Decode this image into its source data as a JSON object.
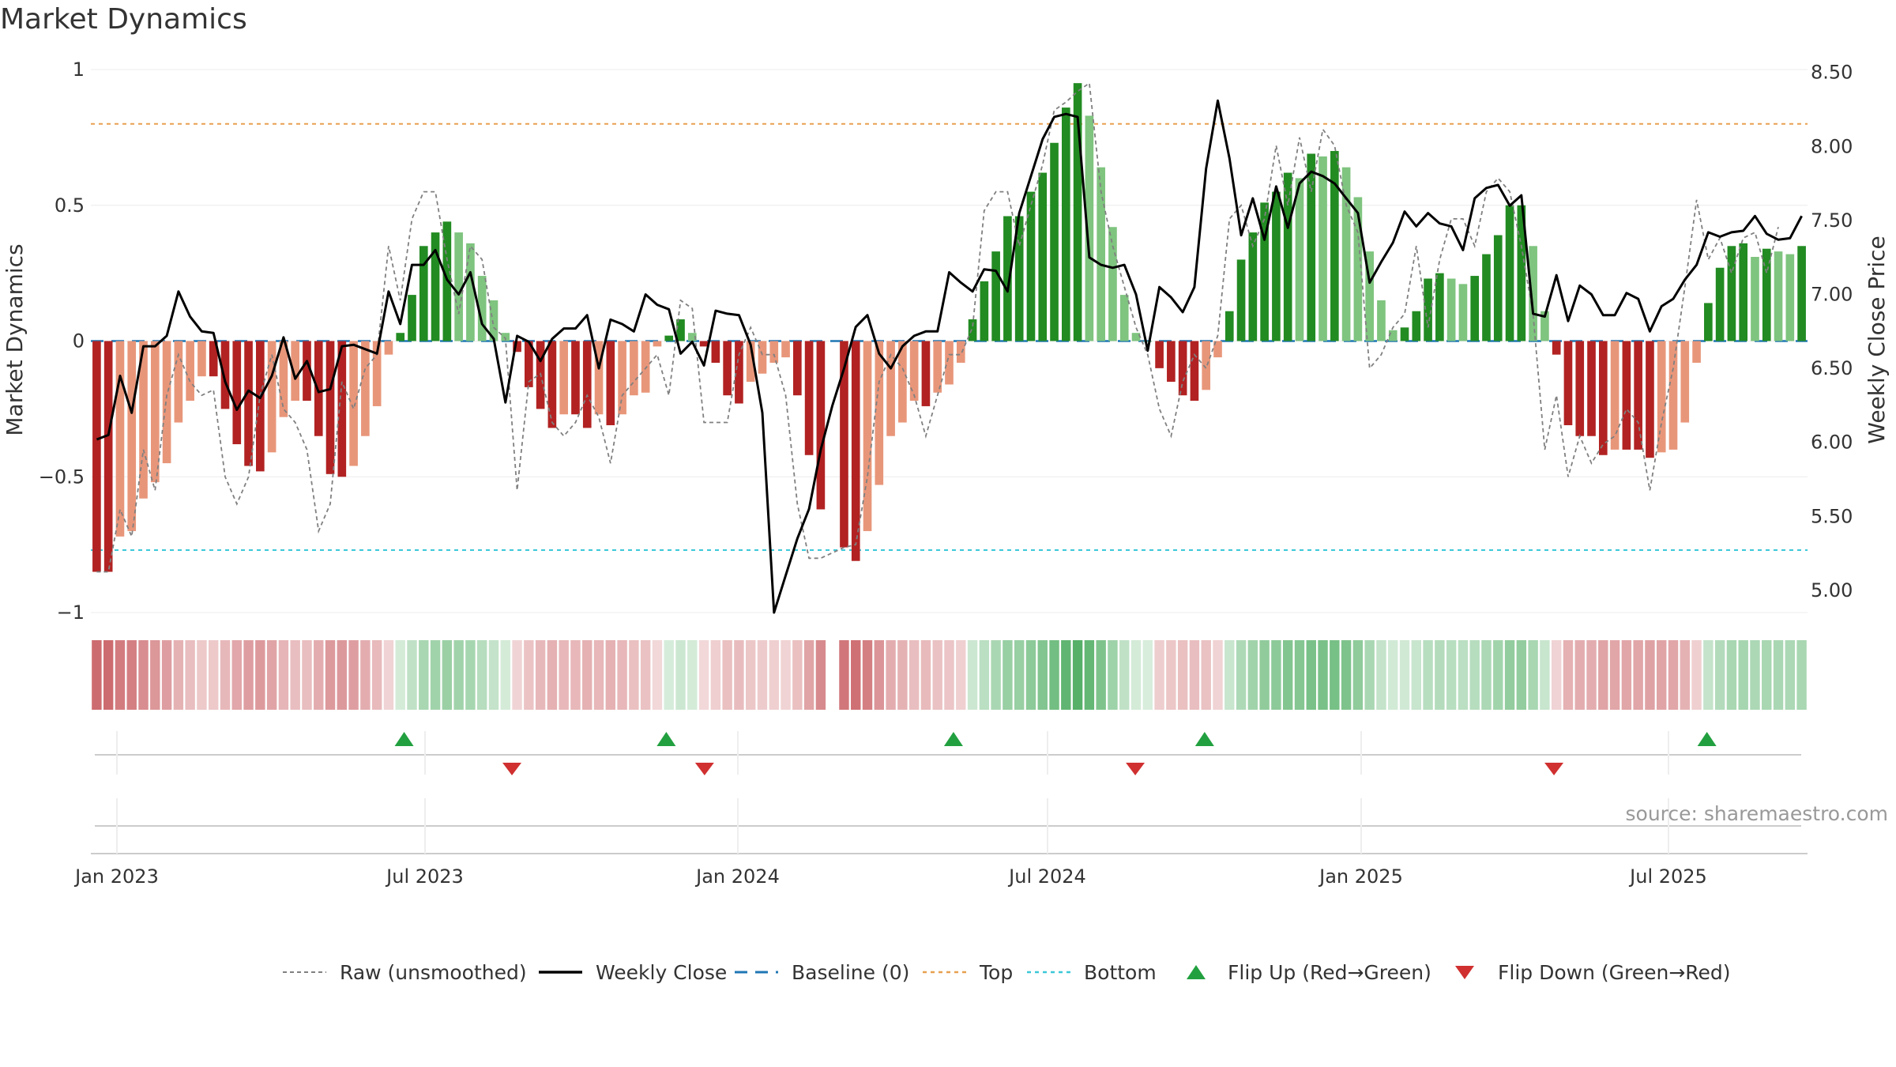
{
  "title": "Market Dynamics",
  "source": "source: sharemaestro.com",
  "colors": {
    "strong_red": "#b22222",
    "light_red": "#e8967a",
    "strong_green": "#228b22",
    "light_green": "#7fc47f",
    "close_line": "#000000",
    "raw_line": "#808080",
    "baseline": "#1f77b4",
    "top": "#e8a050",
    "bottom": "#3cc8d8",
    "flip_up": "#22a040",
    "flip_down": "#d03030"
  },
  "chart_data": {
    "type": "bar",
    "title": "Market Dynamics",
    "x_axis": {
      "ticks": [
        "Jan 2023",
        "Jul 2023",
        "Jan 2024",
        "Jul 2024",
        "Jan 2025",
        "Jul 2025"
      ]
    },
    "y_left": {
      "label": "Market Dynamics",
      "range": [
        -1,
        1
      ],
      "ticks": [
        "1",
        "0.5",
        "0",
        "−0.5",
        "−1"
      ]
    },
    "y_right": {
      "label": "Weekly Close Price",
      "range": [
        4.85,
        8.52
      ],
      "ticks": [
        "8.50",
        "8.00",
        "7.50",
        "7.00",
        "6.50",
        "6.00",
        "5.50",
        "5.00"
      ]
    },
    "top_level": 0.8,
    "bottom_level": -0.77,
    "dynamics": [
      -0.85,
      -0.85,
      -0.72,
      -0.7,
      -0.58,
      -0.52,
      -0.45,
      -0.3,
      -0.22,
      -0.13,
      -0.13,
      -0.25,
      -0.38,
      -0.46,
      -0.48,
      -0.41,
      -0.28,
      -0.22,
      -0.22,
      -0.35,
      -0.49,
      -0.5,
      -0.46,
      -0.35,
      -0.24,
      -0.05,
      0.03,
      0.17,
      0.35,
      0.4,
      0.44,
      0.4,
      0.36,
      0.24,
      0.15,
      0.03,
      -0.04,
      -0.17,
      -0.25,
      -0.32,
      -0.27,
      -0.27,
      -0.32,
      -0.27,
      -0.31,
      -0.27,
      -0.2,
      -0.19,
      -0.02,
      0.02,
      0.08,
      0.03,
      -0.02,
      -0.08,
      -0.2,
      -0.23,
      -0.15,
      -0.12,
      -0.08,
      -0.06,
      -0.2,
      -0.42,
      -0.62,
      null,
      -0.76,
      -0.81,
      -0.7,
      -0.53,
      -0.35,
      -0.3,
      -0.22,
      -0.24,
      -0.19,
      -0.16,
      -0.08,
      0.08,
      0.22,
      0.33,
      0.46,
      0.46,
      0.55,
      0.62,
      0.73,
      0.86,
      0.95,
      0.83,
      0.64,
      0.42,
      0.17,
      0.03,
      0,
      -0.1,
      -0.15,
      -0.2,
      -0.22,
      -0.18,
      -0.06,
      0.11,
      0.3,
      0.4,
      0.51,
      0.55,
      0.62,
      0.6,
      0.69,
      0.68,
      0.7,
      0.64,
      0.53,
      0.33,
      0.15,
      0.04,
      0.05,
      0.11,
      0.23,
      0.25,
      0.23,
      0.21,
      0.24,
      0.32,
      0.39,
      0.5,
      0.5,
      0.35,
      0.11,
      -0.05,
      -0.31,
      -0.35,
      -0.35,
      -0.42,
      -0.4,
      -0.4,
      -0.4,
      -0.43,
      -0.41,
      -0.4,
      -0.3,
      -0.08,
      0.14,
      0.27,
      0.35,
      0.36,
      0.31,
      0.34,
      0.33,
      0.32,
      0.35
    ],
    "raw": [
      -0.85,
      -0.85,
      -0.62,
      -0.72,
      -0.4,
      -0.55,
      -0.2,
      -0.05,
      -0.15,
      -0.2,
      -0.18,
      -0.5,
      -0.6,
      -0.5,
      -0.2,
      -0.05,
      -0.25,
      -0.3,
      -0.4,
      -0.7,
      -0.6,
      -0.15,
      -0.25,
      -0.1,
      -0.05,
      0.35,
      0.15,
      0.45,
      0.55,
      0.55,
      0.3,
      0.1,
      0.35,
      0.3,
      0.05,
      0.01,
      -0.55,
      -0.15,
      -0.12,
      -0.3,
      -0.35,
      -0.3,
      -0.2,
      -0.28,
      -0.45,
      -0.2,
      -0.15,
      -0.1,
      -0.05,
      -0.2,
      0.15,
      0.12,
      -0.3,
      -0.3,
      -0.3,
      -0.05,
      0.05,
      -0.05,
      -0.05,
      -0.2,
      -0.6,
      -0.8,
      -0.8,
      -0.78,
      -0.76,
      -0.75,
      -0.5,
      -0.15,
      -0.05,
      -0.1,
      -0.2,
      -0.35,
      -0.2,
      -0.05,
      -0.05,
      0.05,
      0.48,
      0.55,
      0.55,
      0.35,
      0.5,
      0.65,
      0.85,
      0.88,
      0.92,
      0.95,
      0.55,
      0.35,
      0.2,
      0.05,
      -0.05,
      -0.25,
      -0.35,
      -0.15,
      -0.05,
      -0.1,
      0.02,
      0.45,
      0.5,
      0.35,
      0.45,
      0.72,
      0.5,
      0.75,
      0.55,
      0.78,
      0.72,
      0.5,
      0.4,
      -0.1,
      -0.05,
      0.05,
      0.1,
      0.35,
      0.05,
      0.3,
      0.45,
      0.45,
      0.35,
      0.55,
      0.6,
      0.55,
      0.35,
      0.1,
      -0.4,
      -0.2,
      -0.5,
      -0.35,
      -0.45,
      -0.38,
      -0.35,
      -0.25,
      -0.3,
      -0.55,
      -0.3,
      -0.1,
      0.2,
      0.52,
      0.3,
      0.38,
      0.25,
      0.38,
      0.4,
      0.25,
      0.42
    ],
    "close": [
      6.02,
      6.05,
      6.45,
      6.2,
      6.65,
      6.65,
      6.72,
      7.02,
      6.85,
      6.75,
      6.74,
      6.41,
      6.22,
      6.35,
      6.3,
      6.45,
      6.71,
      6.43,
      6.55,
      6.34,
      6.36,
      6.65,
      6.66,
      6.63,
      6.6,
      7.02,
      6.8,
      7.2,
      7.2,
      7.3,
      7.1,
      7.0,
      7.15,
      6.8,
      6.7,
      6.27,
      6.72,
      6.68,
      6.55,
      6.7,
      6.77,
      6.77,
      6.86,
      6.5,
      6.83,
      6.8,
      6.75,
      7.0,
      6.93,
      6.9,
      6.6,
      6.68,
      6.52,
      6.89,
      6.87,
      6.86,
      6.66,
      6.2,
      4.85,
      5.1,
      5.35,
      5.55,
      5.95,
      6.25,
      6.5,
      6.78,
      6.86,
      6.6,
      6.5,
      6.65,
      6.72,
      6.75,
      6.75,
      7.15,
      7.08,
      7.02,
      7.17,
      7.16,
      7.02,
      7.55,
      7.8,
      8.05,
      8.2,
      8.22,
      8.2,
      7.25,
      7.2,
      7.18,
      7.2,
      7.0,
      6.62,
      7.05,
      6.98,
      6.88,
      7.05,
      7.85,
      8.31,
      7.92,
      7.4,
      7.65,
      7.37,
      7.73,
      7.45,
      7.75,
      7.83,
      7.8,
      7.75,
      7.65,
      7.55,
      7.08,
      7.22,
      7.35,
      7.56,
      7.46,
      7.55,
      7.48,
      7.46,
      7.3,
      7.65,
      7.72,
      7.74,
      7.6,
      7.67,
      6.87,
      6.85,
      7.13,
      6.82,
      7.06,
      7.0,
      6.86,
      6.86,
      7.01,
      6.97,
      6.75,
      6.92,
      6.97,
      7.1,
      7.2,
      7.42,
      7.39,
      7.42,
      7.43,
      7.53,
      7.41,
      7.37,
      7.38,
      7.53
    ],
    "flips_up": [
      0.1825,
      0.3352,
      0.5025,
      0.6488,
      0.9414
    ],
    "flips_down": [
      0.2453,
      0.3575,
      0.6084,
      0.8523
    ],
    "legend": [
      "Raw (unsmoothed)",
      "Weekly Close",
      "Baseline (0)",
      "Top",
      "Bottom",
      "Flip Up (Red→Green)",
      "Flip Down (Green→Red)"
    ]
  }
}
